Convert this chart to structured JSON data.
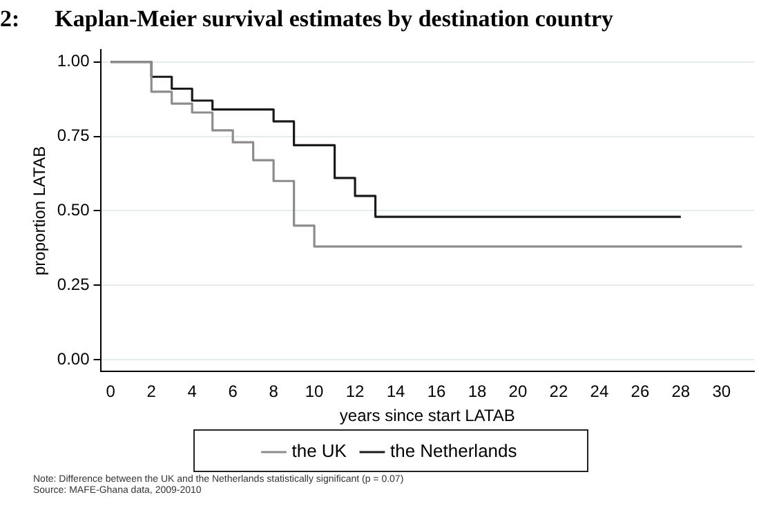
{
  "chart_data": {
    "type": "step",
    "title": "2:      Kaplan-Meier survival estimates by destination country",
    "xlabel": "years since start LATAB",
    "ylabel": "proportion LATAB",
    "series": [
      {
        "name": "the UK",
        "color": "#8c8c8c",
        "x": [
          0,
          2,
          3,
          4,
          5,
          6,
          7,
          8,
          9,
          10,
          31
        ],
        "values": [
          1,
          0.9,
          0.86,
          0.83,
          0.77,
          0.73,
          0.67,
          0.6,
          0.45,
          0.38,
          0.38
        ]
      },
      {
        "name": "the Netherlands",
        "color": "#1a1a1a",
        "x": [
          0,
          2,
          3,
          4,
          5,
          8,
          9,
          11,
          12,
          13,
          28
        ],
        "values": [
          1,
          0.95,
          0.91,
          0.87,
          0.84,
          0.8,
          0.72,
          0.61,
          0.55,
          0.48,
          0.48
        ]
      }
    ],
    "xlim": [
      -0.5,
      31.6
    ],
    "xticks": [
      0,
      2,
      4,
      6,
      8,
      10,
      12,
      14,
      16,
      18,
      20,
      22,
      24,
      26,
      28,
      30
    ],
    "ylim": [
      -0.04,
      1.04
    ],
    "yticks": [
      {
        "value": 0,
        "label": "0.00"
      },
      {
        "value": 0.25,
        "label": "0.25"
      },
      {
        "value": 0.5,
        "label": "0.50"
      },
      {
        "value": 0.75,
        "label": "0.75"
      },
      {
        "value": 1,
        "label": "1.00"
      }
    ],
    "grid": "y",
    "legend": "bottom",
    "marker": "none",
    "line_style": "solid",
    "annotations": [
      "Note: Difference between the UK and the Netherlands statistically significant (p = 0.07)",
      "Source: MAFE-Ghana data, 2009-2010"
    ]
  }
}
